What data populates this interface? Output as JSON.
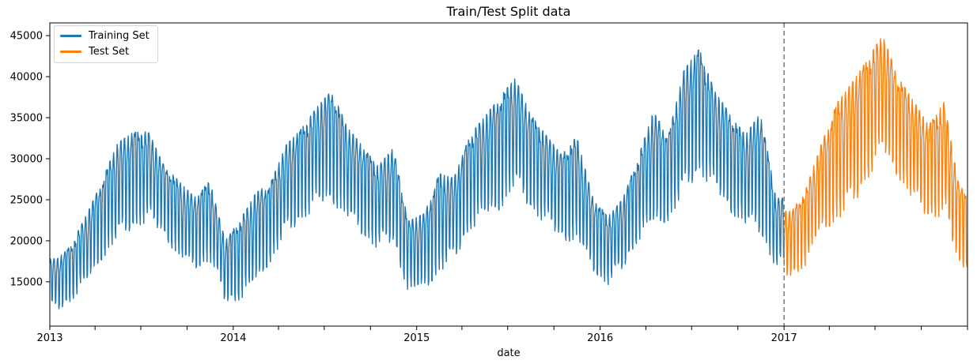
{
  "title": "Train/Test Split data",
  "xlabel": "date",
  "legend": {
    "position": "upper-left",
    "items": [
      {
        "label": "Training Set",
        "color": "#1f77b4"
      },
      {
        "label": "Test Set",
        "color": "#ff7f0e"
      }
    ]
  },
  "split_line": {
    "date": "2017-01-01",
    "color": "#7f7f7f",
    "style": "dashed",
    "dash": [
      6,
      4
    ]
  },
  "axes": {
    "x_tick_labels": [
      "2013",
      "2014",
      "2015",
      "2016",
      "2017"
    ],
    "x_minor_tick_interval_months": 3,
    "y_ticks": [
      15000,
      20000,
      25000,
      30000,
      35000,
      40000,
      45000
    ],
    "y_tick_labels": [
      "15000",
      "20000",
      "25000",
      "30000",
      "35000",
      "40000",
      "45000"
    ],
    "y_range": [
      9600,
      46550
    ],
    "x_range": [
      "2013-01-01",
      "2018-01-01"
    ],
    "grid": false,
    "spine_color": "#000000"
  },
  "chart_data": {
    "type": "line",
    "title": "Train/Test Split data",
    "xlabel": "date",
    "ylabel": "",
    "legend_position": "upper-left",
    "x_unit": "daily dates 2013-01-01 to 2017-12-31",
    "split_date": "2017-01-01",
    "start_weekday": 2,
    "weekly_profile": [
      0.07,
      0.7,
      0.92,
      1.0,
      0.96,
      0.86,
      0.12
    ],
    "jitter": [
      [
        0.09,
        1.7
      ],
      [
        0.05,
        0.23
      ]
    ],
    "series": [
      {
        "name": "Training Set",
        "color": "#1f77b4",
        "start_month": "2013-01",
        "monthly_envelope": [
          [
            11500,
            17800
          ],
          [
            12800,
            19600
          ],
          [
            14800,
            23300
          ],
          [
            17800,
            27400
          ],
          [
            20000,
            31900
          ],
          [
            21600,
            33200
          ],
          [
            22300,
            33300
          ],
          [
            20700,
            29200
          ],
          [
            17600,
            27200
          ],
          [
            16600,
            25300
          ],
          [
            17600,
            27300
          ],
          [
            12500,
            20000
          ],
          [
            12800,
            22700
          ],
          [
            14600,
            25800
          ],
          [
            17400,
            27000
          ],
          [
            20600,
            31600
          ],
          [
            22500,
            33600
          ],
          [
            24000,
            36200
          ],
          [
            24800,
            38300
          ],
          [
            22500,
            33800
          ],
          [
            20700,
            31500
          ],
          [
            19000,
            29100
          ],
          [
            19800,
            31300
          ],
          [
            13500,
            22400
          ],
          [
            13900,
            23300
          ],
          [
            16200,
            28200
          ],
          [
            17500,
            27600
          ],
          [
            21300,
            32700
          ],
          [
            22600,
            35100
          ],
          [
            23800,
            37500
          ],
          [
            26400,
            39800
          ],
          [
            23900,
            35300
          ],
          [
            21900,
            32900
          ],
          [
            20200,
            30500
          ],
          [
            19700,
            32700
          ],
          [
            16500,
            25500
          ],
          [
            14600,
            22900
          ],
          [
            16500,
            25100
          ],
          [
            20000,
            30000
          ],
          [
            21500,
            35700
          ],
          [
            22500,
            32900
          ],
          [
            25500,
            40700
          ],
          [
            28400,
            43400
          ],
          [
            26000,
            38200
          ],
          [
            23600,
            35400
          ],
          [
            21600,
            32900
          ],
          [
            21000,
            35600
          ],
          [
            16600,
            25200
          ]
        ]
      },
      {
        "name": "Test Set",
        "color": "#ff7f0e",
        "start_month": "2017-01",
        "monthly_envelope": [
          [
            15600,
            23600
          ],
          [
            17100,
            26400
          ],
          [
            21000,
            31700
          ],
          [
            22500,
            36700
          ],
          [
            24000,
            39200
          ],
          [
            27500,
            42100
          ],
          [
            30500,
            45000
          ],
          [
            27800,
            39900
          ],
          [
            24500,
            37000
          ],
          [
            22900,
            34100
          ],
          [
            23000,
            36900
          ],
          [
            16800,
            26400
          ]
        ]
      }
    ]
  }
}
